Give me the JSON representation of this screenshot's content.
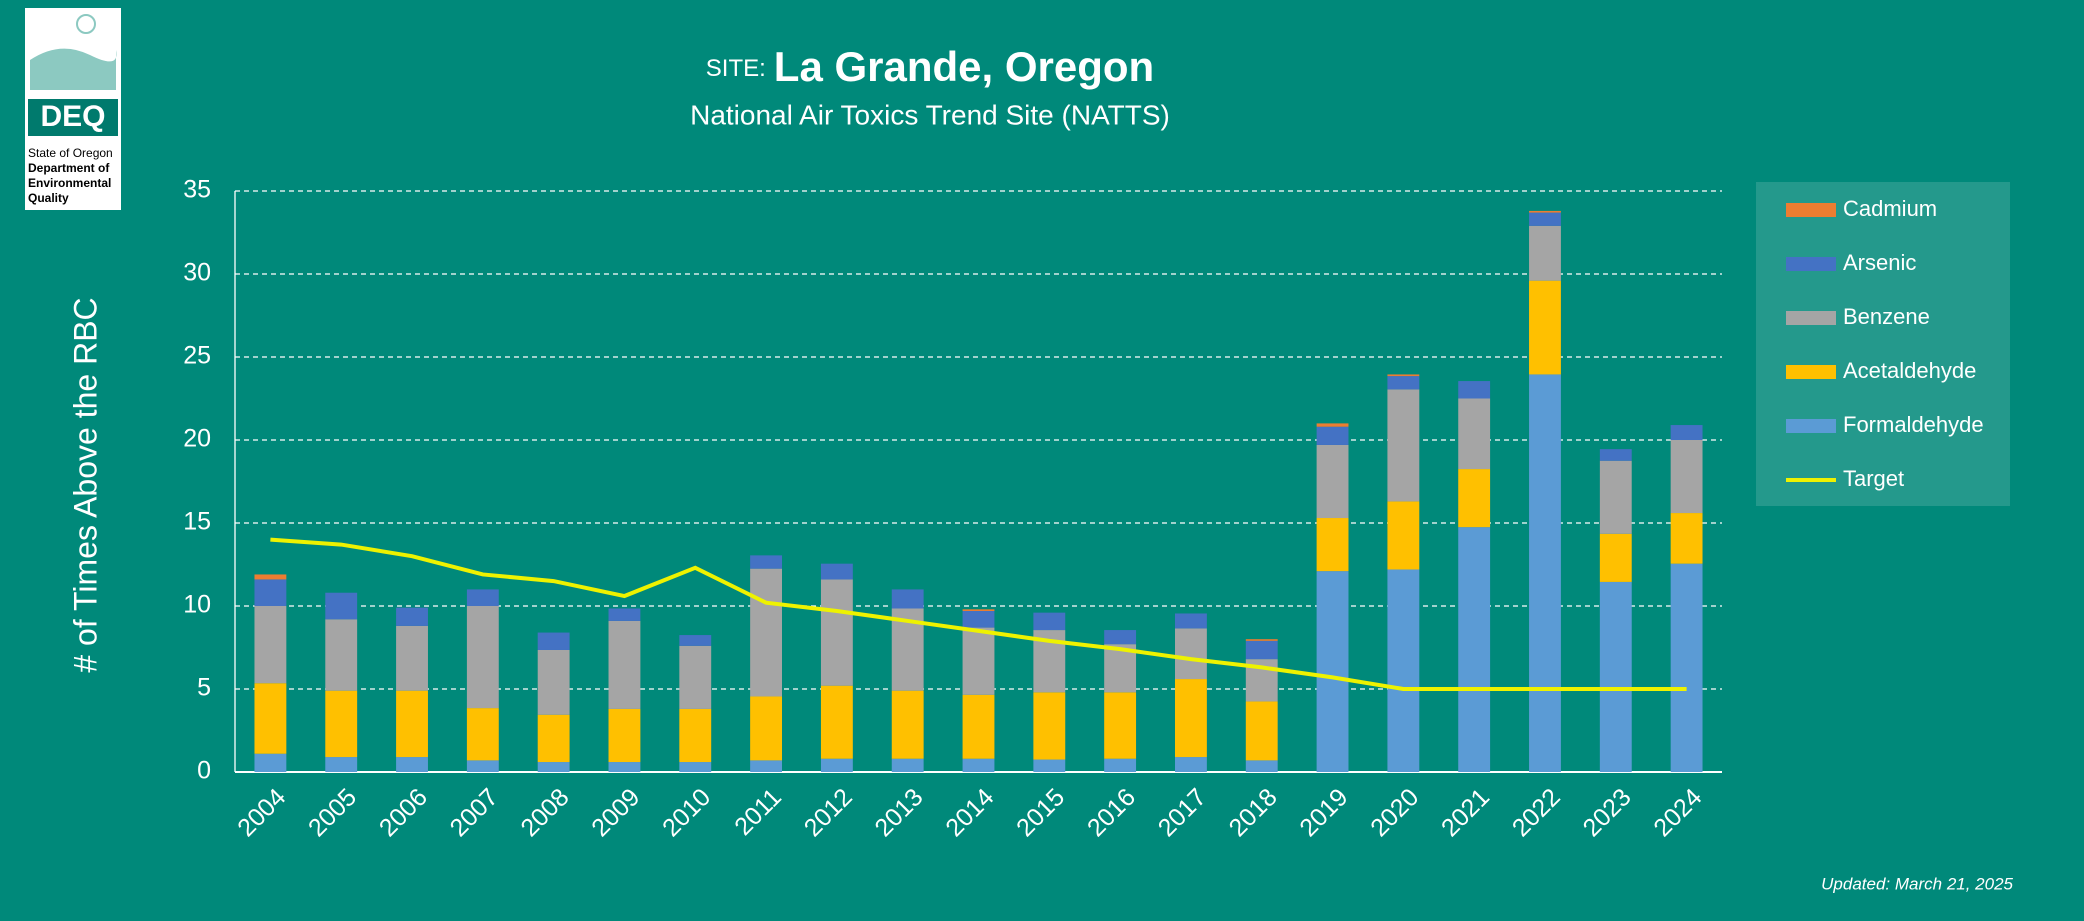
{
  "logo": {
    "name": "DEQ",
    "lines": [
      "State of Oregon",
      "Department of",
      "Environmental",
      "Quality"
    ]
  },
  "chart_data": {
    "type": "bar",
    "stacked": true,
    "title_prefix": "SITE:",
    "title": "La Grande, Oregon",
    "subtitle": "National Air Toxics Trend Site (NATTS)",
    "y_label": "# of Times Above the RBC",
    "annotation": "Updated: March 21, 2025",
    "categories": [
      "2004",
      "2005",
      "2006",
      "2007",
      "2008",
      "2009",
      "2010",
      "2011",
      "2012",
      "2013",
      "2014",
      "2015",
      "2016",
      "2017",
      "2018",
      "2019",
      "2020",
      "2021",
      "2022",
      "2023",
      "2024"
    ],
    "series": [
      {
        "name": "Formaldehyde",
        "color": "#5b9bd5",
        "values": [
          1.1,
          0.9,
          0.9,
          0.7,
          0.6,
          0.6,
          0.6,
          0.7,
          0.8,
          0.8,
          0.8,
          0.75,
          0.8,
          0.9,
          0.7,
          12.1,
          12.2,
          14.75,
          23.95,
          11.45,
          12.55
        ]
      },
      {
        "name": "Acetaldehyde",
        "color": "#ffc000",
        "values": [
          4.25,
          4.0,
          4.0,
          3.15,
          2.85,
          3.2,
          3.2,
          3.85,
          4.4,
          4.1,
          3.85,
          4.05,
          4.0,
          4.7,
          3.55,
          3.2,
          4.1,
          3.5,
          5.65,
          2.9,
          3.05
        ]
      },
      {
        "name": "Benzene",
        "color": "#a5a5a5",
        "values": [
          4.65,
          4.3,
          3.9,
          6.15,
          3.9,
          5.3,
          3.8,
          7.7,
          6.4,
          4.95,
          4.05,
          3.75,
          2.9,
          3.05,
          2.55,
          4.4,
          6.75,
          4.25,
          3.3,
          4.4,
          4.4
        ]
      },
      {
        "name": "Arsenic",
        "color": "#4472c4",
        "values": [
          1.6,
          1.6,
          1.1,
          1.0,
          1.05,
          0.75,
          0.65,
          0.8,
          0.95,
          1.15,
          1.0,
          1.05,
          0.85,
          0.9,
          1.1,
          1.1,
          0.8,
          1.05,
          0.8,
          0.7,
          0.9
        ]
      },
      {
        "name": "Cadmium",
        "color": "#ed7d31",
        "values": [
          0.3,
          0,
          0,
          0,
          0,
          0,
          0,
          0,
          0,
          0,
          0.1,
          0,
          0,
          0,
          0.1,
          0.2,
          0.1,
          0,
          0.1,
          0,
          0
        ]
      },
      {
        "name": "Target",
        "type": "line",
        "color": "#eef200",
        "values": [
          14.0,
          13.7,
          13.0,
          11.9,
          11.5,
          10.6,
          12.3,
          10.2,
          9.7,
          9.1,
          8.5,
          7.9,
          7.4,
          6.8,
          6.3,
          5.7,
          5.0,
          5.0,
          5.0,
          5.0,
          5.0
        ]
      }
    ],
    "ylim": [
      0,
      35
    ],
    "yticks": [
      0,
      5,
      10,
      15,
      20,
      25,
      30,
      35
    ],
    "grid": true,
    "legend": "right"
  }
}
